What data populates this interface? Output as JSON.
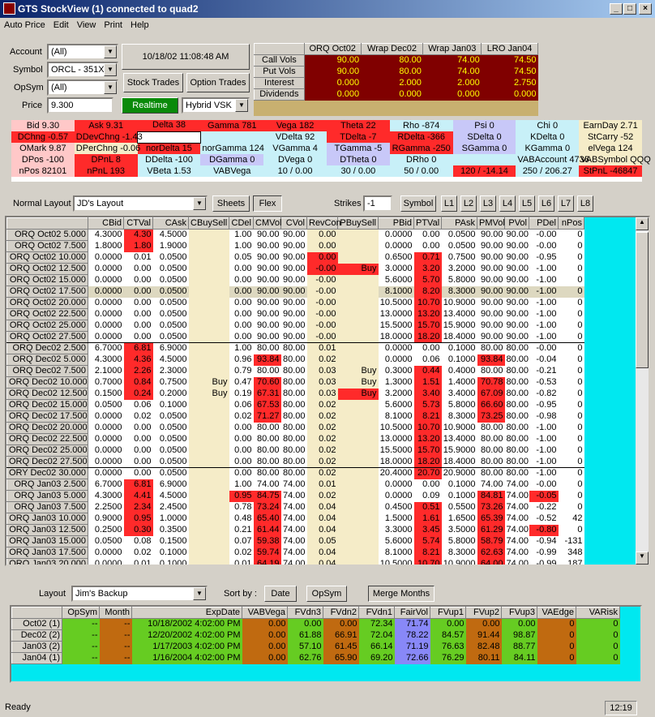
{
  "window": {
    "title": "GTS StockView (1) connected to quad2",
    "min": "_",
    "max": "□",
    "close": "×"
  },
  "menu": [
    "Auto Price",
    "Edit",
    "View",
    "Print",
    "Help"
  ],
  "form": {
    "account_label": "Account",
    "account_value": "(All)",
    "symbol_label": "Symbol",
    "symbol_value": "ORCL - 351X",
    "opsym_label": "OpSym",
    "opsym_value": "(All)",
    "price_label": "Price",
    "price_value": "9.300",
    "timestamp": "10/18/02 11:08:48 AM",
    "stock_trades": "Stock Trades",
    "option_trades": "Option Trades",
    "realtime": "Realtime",
    "model_value": "Hybrid VSK"
  },
  "vols": {
    "headers": [
      "ORQ Oct02",
      "Wrap Dec02",
      "Wrap Jan03",
      "LRO Jan04"
    ],
    "rows": [
      {
        "label": "Call Vols",
        "values": [
          "90.00",
          "80.00",
          "74.00",
          "74.50"
        ]
      },
      {
        "label": "Put Vols",
        "values": [
          "90.00",
          "80.00",
          "74.00",
          "74.50"
        ]
      },
      {
        "label": "Interest",
        "values": [
          "0.000",
          "2.000",
          "2.000",
          "2.750"
        ]
      },
      {
        "label": "Dividends",
        "values": [
          "0.000",
          "0.000",
          "0.000",
          "0.000"
        ]
      }
    ]
  },
  "summary": [
    [
      "Bid  9.30",
      "Ask  9.31",
      "Delta  38",
      "Gamma  781",
      "Vega  182",
      "Theta  22",
      "Rho  -874",
      "Psi  0",
      "Chi  0",
      "EarnDay  2.71"
    ],
    [
      "DChng  -0.57",
      "DDevChng  -1.43",
      "",
      "",
      "VDelta  92",
      "TDelta  -7",
      "RDelta  -366",
      "SDelta  0",
      "KDelta  0",
      "StCarry  -52"
    ],
    [
      "OMark  9.87",
      "DPerChng  -0.06",
      "norDelta  15",
      "norGamma  124",
      "VGamma  4",
      "TGamma  -5",
      "RGamma  -250",
      "SGamma  0",
      "KGamma  0",
      "elVega  124"
    ],
    [
      "DPos  -100",
      "DPnL  8",
      "DDelta  -100",
      "DGamma  0",
      "DVega  0",
      "DTheta  0",
      "DRho  0",
      "",
      "VABAccount  4736",
      "VABSymbol  QQQ"
    ],
    [
      "nPos  82101",
      "nPnL  193",
      "VBeta  1.53",
      "VABVega",
      "10 / 0.00",
      "30 / 0.00",
      "50 / 0.00",
      "120 / -14.14",
      "250 / 206.27",
      "StPnL  -46847"
    ]
  ],
  "toolbar2": {
    "layout_label": "Normal Layout",
    "layout_value": "JD's Layout",
    "sheets": "Sheets",
    "flex": "Flex",
    "strikes_label": "Strikes",
    "strikes_value": "-1",
    "symbol_btn": "Symbol",
    "levels": [
      "L1",
      "L2",
      "L3",
      "L4",
      "L5",
      "L6",
      "L7",
      "L8"
    ]
  },
  "main": {
    "headers": [
      "",
      "CBid",
      "CTVal",
      "CAsk",
      "CBuySell",
      "CDel",
      "CMVol",
      "CVol",
      "RevCon",
      "PBuySell",
      "PBid",
      "PTVal",
      "PAsk",
      "PMVol",
      "PVol",
      "PDel",
      "nPos"
    ],
    "rows": [
      [
        "ORQ Oct02 5.000",
        "4.3000",
        "4.30",
        "4.5000",
        "",
        "1.00",
        "90.00",
        "90.00",
        "0.00",
        "",
        "0.0000",
        "0.00",
        "0.0500",
        "90.00",
        "90.00",
        "-0.00",
        "0"
      ],
      [
        "ORQ Oct02 7.500",
        "1.8000",
        "1.80",
        "1.9000",
        "",
        "1.00",
        "90.00",
        "90.00",
        "0.00",
        "",
        "0.0000",
        "0.00",
        "0.0500",
        "90.00",
        "90.00",
        "-0.00",
        "0"
      ],
      [
        "ORQ Oct02 10.000",
        "0.0000",
        "0.01",
        "0.0500",
        "",
        "0.05",
        "90.00",
        "90.00",
        "0.00",
        "",
        "0.6500",
        "0.71",
        "0.7500",
        "90.00",
        "90.00",
        "-0.95",
        "0"
      ],
      [
        "ORQ Oct02 12.500",
        "0.0000",
        "0.00",
        "0.0500",
        "",
        "0.00",
        "90.00",
        "90.00",
        "-0.00",
        "Buy",
        "3.0000",
        "3.20",
        "3.2000",
        "90.00",
        "90.00",
        "-1.00",
        "0"
      ],
      [
        "ORQ Oct02 15.000",
        "0.0000",
        "0.00",
        "0.0500",
        "",
        "0.00",
        "90.00",
        "90.00",
        "-0.00",
        "",
        "5.6000",
        "5.70",
        "5.8000",
        "90.00",
        "90.00",
        "-1.00",
        "0"
      ],
      [
        "ORQ Oct02 17.500",
        "0.0000",
        "0.00",
        "0.0500",
        "",
        "0.00",
        "90.00",
        "90.00",
        "-0.00",
        "",
        "8.1000",
        "8.20",
        "8.3000",
        "90.00",
        "90.00",
        "-1.00",
        "0"
      ],
      [
        "ORQ Oct02 20.000",
        "0.0000",
        "0.00",
        "0.0500",
        "",
        "0.00",
        "90.00",
        "90.00",
        "-0.00",
        "",
        "10.5000",
        "10.70",
        "10.9000",
        "90.00",
        "90.00",
        "-1.00",
        "0"
      ],
      [
        "ORQ Oct02 22.500",
        "0.0000",
        "0.00",
        "0.0500",
        "",
        "0.00",
        "90.00",
        "90.00",
        "-0.00",
        "",
        "13.0000",
        "13.20",
        "13.4000",
        "90.00",
        "90.00",
        "-1.00",
        "0"
      ],
      [
        "ORQ Oct02 25.000",
        "0.0000",
        "0.00",
        "0.0500",
        "",
        "0.00",
        "90.00",
        "90.00",
        "-0.00",
        "",
        "15.5000",
        "15.70",
        "15.9000",
        "90.00",
        "90.00",
        "-1.00",
        "0"
      ],
      [
        "ORQ Oct02 27.500",
        "0.0000",
        "0.00",
        "0.0500",
        "",
        "0.00",
        "90.00",
        "90.00",
        "-0.00",
        "",
        "18.0000",
        "18.20",
        "18.4000",
        "90.00",
        "90.00",
        "-1.00",
        "0"
      ],
      [
        "ORQ Dec02 2.500",
        "6.7000",
        "6.81",
        "6.9000",
        "",
        "1.00",
        "80.00",
        "80.00",
        "0.01",
        "",
        "0.0000",
        "0.00",
        "0.1000",
        "80.00",
        "80.00",
        "-0.00",
        "0"
      ],
      [
        "ORQ Dec02 5.000",
        "4.3000",
        "4.36",
        "4.5000",
        "",
        "0.96",
        "93.84",
        "80.00",
        "0.02",
        "",
        "0.0000",
        "0.06",
        "0.1000",
        "93.84",
        "80.00",
        "-0.04",
        "0"
      ],
      [
        "ORQ Dec02 7.500",
        "2.1000",
        "2.26",
        "2.3000",
        "",
        "0.79",
        "80.00",
        "80.00",
        "0.03",
        "Buy",
        "0.3000",
        "0.44",
        "0.4000",
        "80.00",
        "80.00",
        "-0.21",
        "0"
      ],
      [
        "ORQ Dec02 10.000",
        "0.7000",
        "0.84",
        "0.7500",
        "Buy",
        "0.47",
        "70.60",
        "80.00",
        "0.03",
        "Buy",
        "1.3000",
        "1.51",
        "1.4000",
        "70.78",
        "80.00",
        "-0.53",
        "0"
      ],
      [
        "ORQ Dec02 12.500",
        "0.1500",
        "0.24",
        "0.2000",
        "Buy",
        "0.19",
        "67.31",
        "80.00",
        "0.03",
        "Buy",
        "3.2000",
        "3.40",
        "3.4000",
        "67.09",
        "80.00",
        "-0.82",
        "0"
      ],
      [
        "ORQ Dec02 15.000",
        "0.0500",
        "0.06",
        "0.1000",
        "",
        "0.06",
        "67.53",
        "80.00",
        "0.02",
        "",
        "5.6000",
        "5.73",
        "5.8000",
        "66.60",
        "80.00",
        "-0.95",
        "0"
      ],
      [
        "ORQ Dec02 17.500",
        "0.0000",
        "0.02",
        "0.0500",
        "",
        "0.02",
        "71.27",
        "80.00",
        "0.02",
        "",
        "8.1000",
        "8.21",
        "8.3000",
        "73.25",
        "80.00",
        "-0.98",
        "0"
      ],
      [
        "ORQ Dec02 20.000",
        "0.0000",
        "0.00",
        "0.0500",
        "",
        "0.00",
        "80.00",
        "80.00",
        "0.02",
        "",
        "10.5000",
        "10.70",
        "10.9000",
        "80.00",
        "80.00",
        "-1.00",
        "0"
      ],
      [
        "ORQ Dec02 22.500",
        "0.0000",
        "0.00",
        "0.0500",
        "",
        "0.00",
        "80.00",
        "80.00",
        "0.02",
        "",
        "13.0000",
        "13.20",
        "13.4000",
        "80.00",
        "80.00",
        "-1.00",
        "0"
      ],
      [
        "ORQ Dec02 25.000",
        "0.0000",
        "0.00",
        "0.0500",
        "",
        "0.00",
        "80.00",
        "80.00",
        "0.02",
        "",
        "15.5000",
        "15.70",
        "15.9000",
        "80.00",
        "80.00",
        "-1.00",
        "0"
      ],
      [
        "ORQ Dec02 27.500",
        "0.0000",
        "0.00",
        "0.0500",
        "",
        "0.00",
        "80.00",
        "80.00",
        "0.02",
        "",
        "18.0000",
        "18.20",
        "18.4000",
        "80.00",
        "80.00",
        "-1.00",
        "0"
      ],
      [
        "ORY Dec02 30.000",
        "0.0000",
        "0.00",
        "0.0500",
        "",
        "0.00",
        "80.00",
        "80.00",
        "0.02",
        "",
        "20.4000",
        "20.70",
        "20.9000",
        "80.00",
        "80.00",
        "-1.00",
        "0"
      ],
      [
        "ORQ Jan03 2.500",
        "6.7000",
        "6.81",
        "6.9000",
        "",
        "1.00",
        "74.00",
        "74.00",
        "0.01",
        "",
        "0.0000",
        "0.00",
        "0.1000",
        "74.00",
        "74.00",
        "-0.00",
        "0"
      ],
      [
        "ORQ Jan03 5.000",
        "4.3000",
        "4.41",
        "4.5000",
        "",
        "0.95",
        "84.75",
        "74.00",
        "0.02",
        "",
        "0.0000",
        "0.09",
        "0.1000",
        "84.81",
        "74.00",
        "-0.05",
        "0"
      ],
      [
        "ORQ Jan03 7.500",
        "2.2500",
        "2.34",
        "2.4500",
        "",
        "0.78",
        "73.24",
        "74.00",
        "0.04",
        "",
        "0.4500",
        "0.51",
        "0.5500",
        "73.26",
        "74.00",
        "-0.22",
        "0"
      ],
      [
        "ORQ Jan03 10.000",
        "0.9000",
        "0.95",
        "1.0000",
        "",
        "0.48",
        "65.40",
        "74.00",
        "0.04",
        "",
        "1.5000",
        "1.61",
        "1.6500",
        "65.39",
        "74.00",
        "-0.52",
        "42"
      ],
      [
        "ORQ Jan03 12.500",
        "0.2500",
        "0.30",
        "0.3500",
        "",
        "0.21",
        "61.44",
        "74.00",
        "0.04",
        "",
        "3.3000",
        "3.45",
        "3.5000",
        "61.29",
        "74.00",
        "-0.80",
        "0"
      ],
      [
        "ORQ Jan03 15.000",
        "0.0500",
        "0.08",
        "0.1500",
        "",
        "0.07",
        "59.38",
        "74.00",
        "0.05",
        "",
        "5.6000",
        "5.74",
        "5.8000",
        "58.79",
        "74.00",
        "-0.94",
        "-131"
      ],
      [
        "ORQ Jan03 17.500",
        "0.0000",
        "0.02",
        "0.1000",
        "",
        "0.02",
        "59.74",
        "74.00",
        "0.04",
        "",
        "8.1000",
        "8.21",
        "8.3000",
        "62.63",
        "74.00",
        "-0.99",
        "348"
      ],
      [
        "ORQ Jan03 20.000",
        "0.0000",
        "0.01",
        "0.1000",
        "",
        "0.01",
        "64.19",
        "74.00",
        "0.04",
        "",
        "10.5000",
        "10.70",
        "10.9000",
        "64.00",
        "74.00",
        "-0.99",
        "187"
      ]
    ]
  },
  "bottom": {
    "layout_label": "Layout",
    "layout_value": "Jim's Backup",
    "sort_label": "Sort by :",
    "sort_date": "Date",
    "sort_opsym": "OpSym",
    "merge": "Merge Months",
    "headers": [
      "",
      "OpSym",
      "Month",
      "ExpDate",
      "VABVega",
      "FVdn3",
      "FVdn2",
      "FVdn1",
      "FairVol",
      "FVup1",
      "FVup2",
      "FVup3",
      "VAEdge",
      "VARisk"
    ],
    "rows": [
      [
        "Oct02 (1)",
        "--",
        "--",
        "10/18/2002 4:02:00 PM",
        "0.00",
        "0.00",
        "0.00",
        "72.34",
        "71.74",
        "0.00",
        "0.00",
        "0.00",
        "0",
        "0"
      ],
      [
        "Dec02 (2)",
        "--",
        "--",
        "12/20/2002 4:02:00 PM",
        "0.00",
        "61.88",
        "66.91",
        "72.04",
        "78.22",
        "84.57",
        "91.44",
        "98.87",
        "0",
        "0"
      ],
      [
        "Jan03 (2)",
        "--",
        "--",
        "1/17/2003 4:02:00 PM",
        "0.00",
        "57.10",
        "61.45",
        "66.14",
        "71.19",
        "76.63",
        "82.48",
        "88.77",
        "0",
        "0"
      ],
      [
        "Jan04 (1)",
        "--",
        "--",
        "1/16/2004 4:02:00 PM",
        "0.00",
        "62.76",
        "65.90",
        "69.20",
        "72.66",
        "76.29",
        "80.11",
        "84.11",
        "0",
        "0"
      ]
    ]
  },
  "status": {
    "text": "Ready",
    "clock": "12:19"
  }
}
